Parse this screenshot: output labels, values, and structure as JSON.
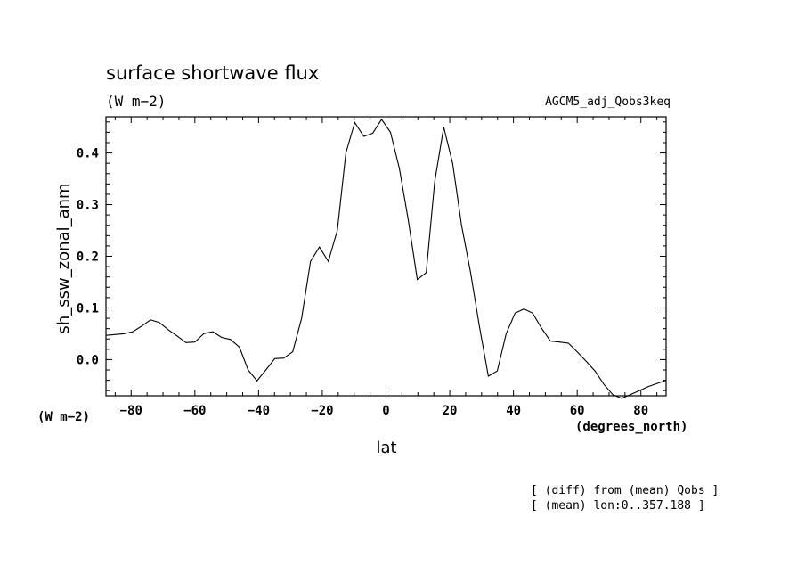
{
  "chart_data": {
    "type": "line",
    "title": "surface shortwave flux",
    "units_label": "(W m−2)",
    "run_label": "AGCM5_adj_Qobs3keq",
    "ylabel": "sh_ssw_zonal_anm",
    "yunits": "(W m−2)",
    "xlabel": "lat",
    "xunits": "(degrees_north)",
    "notes": [
      "[ (diff) from (mean) Qobs ]",
      "[ (mean) lon:0..357.188 ]"
    ],
    "xlim": [
      -87.9,
      87.9
    ],
    "ylim": [
      -0.07,
      0.47
    ],
    "xticks": [
      -80,
      -60,
      -40,
      -20,
      0,
      20,
      40,
      60,
      80
    ],
    "xtick_labels": [
      "−80",
      "−60",
      "−40",
      "−20",
      "0",
      "20",
      "40",
      "60",
      "80"
    ],
    "yticks": [
      0.0,
      0.1,
      0.2,
      0.3,
      0.4
    ],
    "ytick_labels": [
      "0.0",
      "0.1",
      "0.2",
      "0.3",
      "0.4"
    ],
    "grid": false,
    "line_color": "#000000",
    "x": [
      -87.9,
      -82.3,
      -79.5,
      -76.7,
      -73.9,
      -71.2,
      -68.4,
      -65.6,
      -62.8,
      -60.0,
      -57.2,
      -54.4,
      -51.6,
      -48.8,
      -46.0,
      -43.3,
      -40.5,
      -37.7,
      -34.9,
      -32.1,
      -29.3,
      -26.5,
      -23.7,
      -20.9,
      -18.1,
      -15.3,
      -12.6,
      -9.8,
      -7.0,
      -4.2,
      -1.4,
      1.4,
      4.2,
      7.0,
      9.8,
      12.6,
      15.3,
      18.1,
      20.9,
      23.7,
      26.5,
      29.3,
      32.1,
      34.9,
      37.7,
      40.5,
      43.3,
      46.0,
      48.8,
      51.6,
      54.4,
      57.2,
      60.0,
      62.8,
      65.6,
      68.4,
      71.2,
      73.9,
      76.7,
      79.5,
      82.3,
      85.1,
      87.9
    ],
    "y": [
      0.047,
      0.05,
      0.054,
      0.065,
      0.077,
      0.072,
      0.058,
      0.046,
      0.033,
      0.034,
      0.05,
      0.054,
      0.043,
      0.039,
      0.024,
      -0.02,
      -0.041,
      -0.02,
      0.002,
      0.003,
      0.015,
      0.08,
      0.19,
      0.218,
      0.19,
      0.25,
      0.4,
      0.459,
      0.432,
      0.438,
      0.465,
      0.44,
      0.37,
      0.27,
      0.155,
      0.168,
      0.345,
      0.45,
      0.38,
      0.26,
      0.17,
      0.065,
      -0.032,
      -0.022,
      0.05,
      0.09,
      0.098,
      0.09,
      0.061,
      0.036,
      0.034,
      0.032,
      0.015,
      -0.003,
      -0.022,
      -0.048,
      -0.068,
      -0.075,
      -0.068,
      -0.06,
      -0.052,
      -0.046,
      -0.04
    ]
  }
}
